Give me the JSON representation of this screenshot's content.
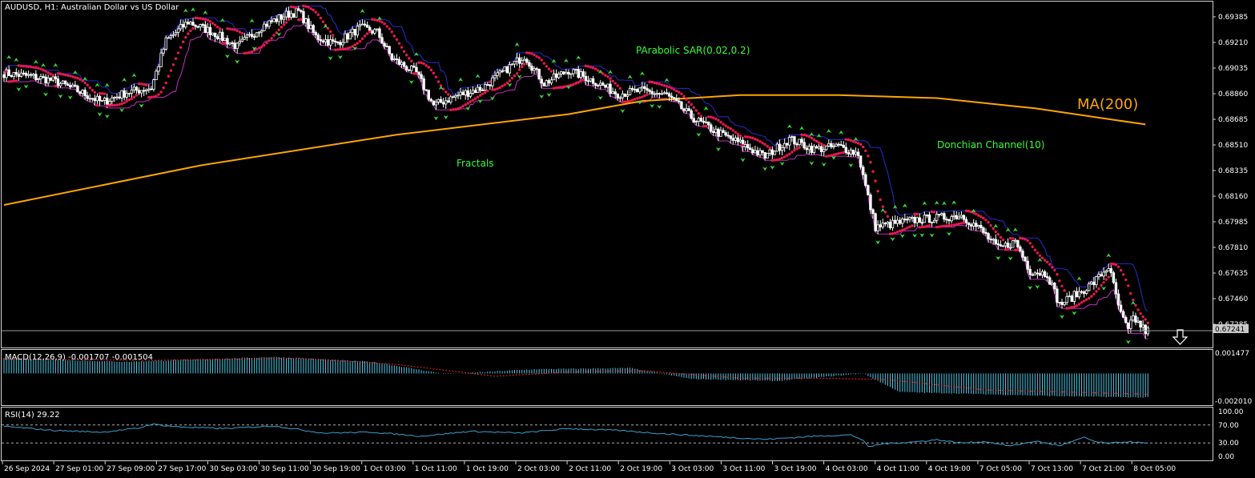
{
  "chart_data": [
    {
      "type": "candlestick",
      "title": "AUDUSD, H1:  Australian Dollar vs US Dollar",
      "last_price": "0.67241",
      "ylim": [
        0.67175,
        0.69495
      ],
      "y_ticks": [
        "0.69385",
        "0.69210",
        "0.69035",
        "0.68860",
        "0.68685",
        "0.68510",
        "0.68335",
        "0.68160",
        "0.67985",
        "0.67810",
        "0.67635",
        "0.67460",
        "0.67285"
      ],
      "x_ticks": [
        "26 Sep 2024",
        "27 Sep 01:00",
        "27 Sep 09:00",
        "27 Sep 17:00",
        "30 Sep 03:00",
        "30 Sep 11:00",
        "30 Sep 19:00",
        "1 Oct 03:00",
        "1 Oct 11:00",
        "1 Oct 19:00",
        "2 Oct 03:00",
        "2 Oct 11:00",
        "2 Oct 19:00",
        "3 Oct 03:00",
        "3 Oct 11:00",
        "3 Oct 19:00",
        "4 Oct 03:00",
        "4 Oct 11:00",
        "4 Oct 19:00",
        "7 Oct 05:00",
        "7 Oct 13:00",
        "7 Oct 21:00",
        "8 Oct 05:00"
      ],
      "close_path": [
        [
          0,
          0.69
        ],
        [
          10,
          0.6898
        ],
        [
          20,
          0.6895
        ],
        [
          30,
          0.6888
        ],
        [
          40,
          0.688
        ],
        [
          50,
          0.6887
        ],
        [
          60,
          0.689
        ],
        [
          66,
          0.6922
        ],
        [
          75,
          0.6935
        ],
        [
          85,
          0.6928
        ],
        [
          95,
          0.6918
        ],
        [
          105,
          0.6932
        ],
        [
          115,
          0.694
        ],
        [
          120,
          0.6942
        ],
        [
          127,
          0.6925
        ],
        [
          135,
          0.692
        ],
        [
          145,
          0.6931
        ],
        [
          152,
          0.6928
        ],
        [
          158,
          0.691
        ],
        [
          168,
          0.69
        ],
        [
          175,
          0.6878
        ],
        [
          185,
          0.6885
        ],
        [
          195,
          0.689
        ],
        [
          205,
          0.6903
        ],
        [
          212,
          0.6912
        ],
        [
          220,
          0.6893
        ],
        [
          230,
          0.6902
        ],
        [
          240,
          0.6895
        ],
        [
          250,
          0.6886
        ],
        [
          260,
          0.6888
        ],
        [
          270,
          0.6885
        ],
        [
          280,
          0.687
        ],
        [
          290,
          0.686
        ],
        [
          300,
          0.6852
        ],
        [
          310,
          0.6843
        ],
        [
          320,
          0.6855
        ],
        [
          330,
          0.6848
        ],
        [
          340,
          0.685
        ],
        [
          348,
          0.6845
        ],
        [
          352,
          0.6815
        ],
        [
          355,
          0.6795
        ],
        [
          362,
          0.6797
        ],
        [
          372,
          0.68
        ],
        [
          380,
          0.6801
        ],
        [
          390,
          0.6803
        ],
        [
          398,
          0.6793
        ],
        [
          405,
          0.678
        ],
        [
          412,
          0.6785
        ],
        [
          418,
          0.6765
        ],
        [
          425,
          0.6763
        ],
        [
          430,
          0.6742
        ],
        [
          438,
          0.675
        ],
        [
          444,
          0.6757
        ],
        [
          450,
          0.6768
        ],
        [
          455,
          0.6735
        ],
        [
          458,
          0.6724
        ],
        [
          460,
          0.6733
        ],
        [
          465,
          0.6724
        ]
      ],
      "overlays": {
        "ma200": {
          "label": "MA(200)",
          "values": [
            [
              0,
              0.681
            ],
            [
              80,
              0.6837
            ],
            [
              160,
              0.6858
            ],
            [
              230,
              0.6872
            ],
            [
              260,
              0.6881
            ],
            [
              300,
              0.6885
            ],
            [
              340,
              0.6885
            ],
            [
              380,
              0.6883
            ],
            [
              420,
              0.6876
            ],
            [
              465,
              0.6865
            ]
          ]
        },
        "parabolic_sar": {
          "label": "PArabolic SAR(0.02,0.2)"
        },
        "donchian": {
          "label": "Donchian Channel(10)"
        },
        "fractals": {
          "label": "Fractals"
        }
      }
    },
    {
      "type": "histogram",
      "title": "MACD(12,26,9) -0.001707 -0.001504",
      "y_ticks": [
        "0.001477",
        "-0.002010"
      ],
      "ylim": [
        -0.00215,
        0.00165
      ],
      "macd_path": [
        [
          0,
          0.0011
        ],
        [
          50,
          0.00085
        ],
        [
          110,
          0.0012
        ],
        [
          150,
          0.00085
        ],
        [
          180,
          -5e-05
        ],
        [
          215,
          0.0003
        ],
        [
          255,
          0.0004
        ],
        [
          280,
          -0.0004
        ],
        [
          315,
          -0.00055
        ],
        [
          350,
          0.0
        ],
        [
          365,
          -0.00135
        ],
        [
          430,
          -0.00165
        ],
        [
          465,
          -0.00175
        ]
      ],
      "signal_path": [
        [
          0,
          0.00105
        ],
        [
          60,
          0.00095
        ],
        [
          120,
          0.0011
        ],
        [
          160,
          0.00065
        ],
        [
          200,
          -0.0002
        ],
        [
          230,
          0.0001
        ],
        [
          260,
          0.0002
        ],
        [
          300,
          -0.00035
        ],
        [
          335,
          -0.00035
        ],
        [
          360,
          -0.00045
        ],
        [
          400,
          -0.0012
        ],
        [
          465,
          -0.0015
        ]
      ]
    },
    {
      "type": "line",
      "title": "RSI(14) 29.22",
      "y_ticks": [
        "100.00",
        "70.00",
        "30.00",
        "0.00"
      ],
      "ylim": [
        0,
        100
      ],
      "levels": [
        70,
        30
      ],
      "rsi_path": [
        [
          0,
          67
        ],
        [
          20,
          58
        ],
        [
          40,
          54
        ],
        [
          55,
          63
        ],
        [
          60,
          72
        ],
        [
          70,
          66
        ],
        [
          90,
          62
        ],
        [
          110,
          68
        ],
        [
          130,
          52
        ],
        [
          150,
          54
        ],
        [
          170,
          45
        ],
        [
          190,
          56
        ],
        [
          210,
          52
        ],
        [
          230,
          62
        ],
        [
          250,
          58
        ],
        [
          270,
          50
        ],
        [
          290,
          44
        ],
        [
          310,
          38
        ],
        [
          330,
          45
        ],
        [
          345,
          48
        ],
        [
          350,
          36
        ],
        [
          352,
          21
        ],
        [
          358,
          28
        ],
        [
          370,
          32
        ],
        [
          380,
          37
        ],
        [
          390,
          30
        ],
        [
          400,
          33
        ],
        [
          410,
          23
        ],
        [
          420,
          34
        ],
        [
          430,
          24
        ],
        [
          440,
          42
        ],
        [
          445,
          32
        ],
        [
          450,
          29
        ],
        [
          458,
          33
        ],
        [
          465,
          29
        ]
      ]
    }
  ]
}
